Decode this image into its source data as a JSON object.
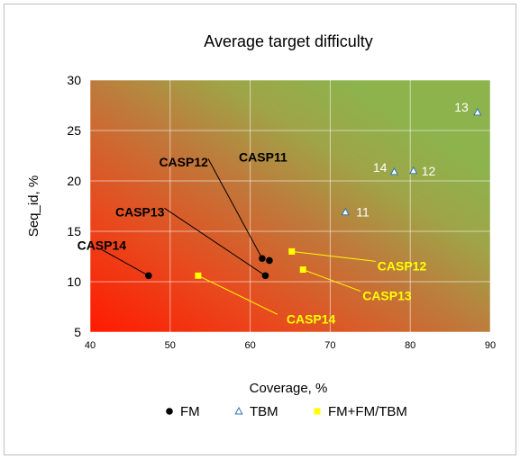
{
  "chart_data": {
    "type": "scatter",
    "title": "Average target difficulty",
    "xlabel": "Coverage, %",
    "ylabel": "Seq_id, %",
    "xlim": [
      40,
      90
    ],
    "ylim": [
      5,
      30
    ],
    "xticks": [
      40,
      50,
      60,
      70,
      80,
      90
    ],
    "yticks": [
      5,
      10,
      15,
      20,
      25,
      30
    ],
    "grid": true,
    "legend_position": "bottom",
    "series": [
      {
        "name": "FM",
        "marker": "circle",
        "color": "#000000",
        "label_color": "#000000",
        "points": [
          {
            "x": 47.3,
            "y": 10.6,
            "label": "CASP14"
          },
          {
            "x": 61.9,
            "y": 10.6,
            "label": "CASP13"
          },
          {
            "x": 61.5,
            "y": 12.3,
            "label": "CASP12"
          },
          {
            "x": 62.4,
            "y": 12.1,
            "label": "CASP11"
          }
        ]
      },
      {
        "name": "TBM",
        "marker": "triangle",
        "color": "#2e75b6",
        "label_color": "#ffffff",
        "points": [
          {
            "x": 71.9,
            "y": 16.9,
            "label": "11"
          },
          {
            "x": 80.4,
            "y": 21.0,
            "label": "12"
          },
          {
            "x": 88.4,
            "y": 26.8,
            "label": "13"
          },
          {
            "x": 78.0,
            "y": 20.9,
            "label": "14"
          }
        ]
      },
      {
        "name": "FM+FM/TBM",
        "marker": "square",
        "color": "#ffff00",
        "label_color": "#ffff00",
        "points": [
          {
            "x": 65.2,
            "y": 13.0,
            "label": "CASP12"
          },
          {
            "x": 66.6,
            "y": 11.2,
            "label": "CASP13"
          },
          {
            "x": 53.5,
            "y": 10.6,
            "label": "CASP14"
          }
        ]
      }
    ]
  }
}
